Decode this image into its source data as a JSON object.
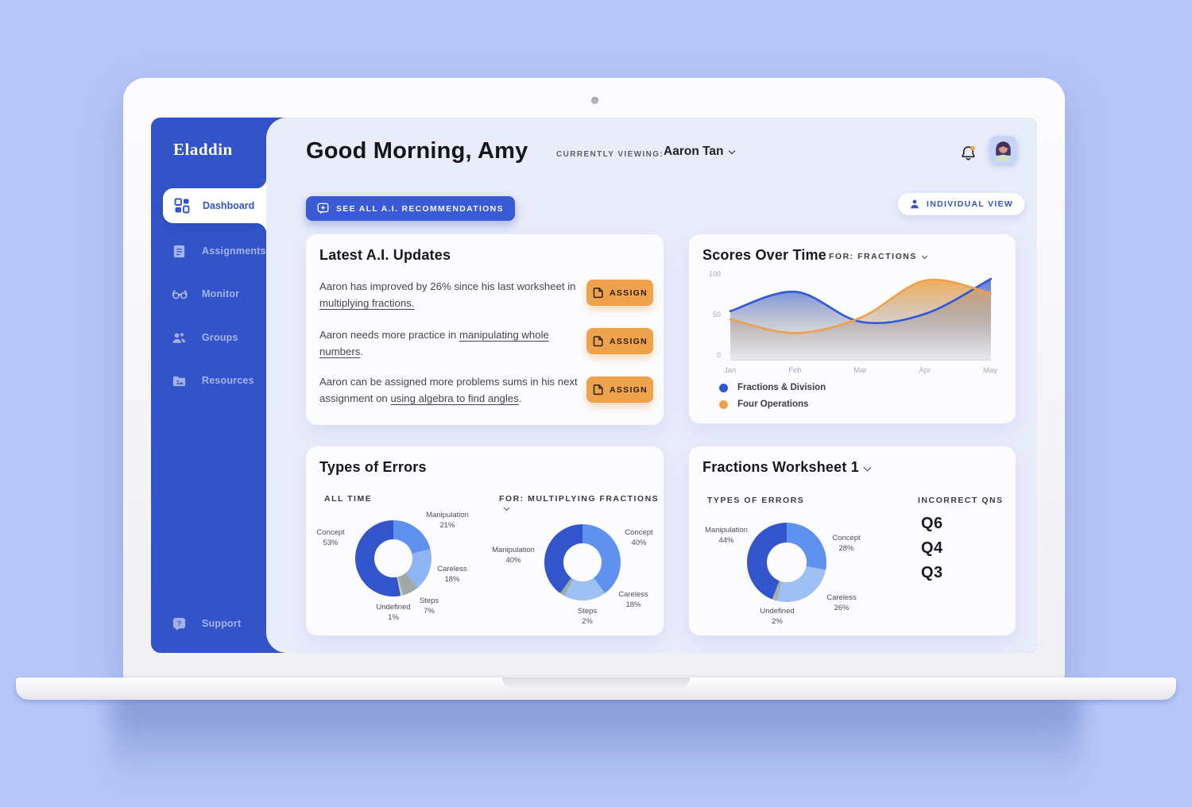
{
  "app": {
    "accent_blue": "#3354c9",
    "button_blue": "#3a5ad6",
    "accent_orange": "#eea24b",
    "content_bg": "#e9ecfb"
  },
  "sidebar": {
    "logo": "Eladdin",
    "items": [
      {
        "label": "Dashboard",
        "active": true
      },
      {
        "label": "Assignments",
        "active": false
      },
      {
        "label": "Monitor",
        "active": false
      },
      {
        "label": "Groups",
        "active": false
      },
      {
        "label": "Resources",
        "active": false
      }
    ],
    "support": {
      "label": "Support"
    }
  },
  "header": {
    "greeting": "Good Morning, Amy",
    "currently_viewing_label": "CURRENTLY VIEWING:",
    "currently_viewing_value": "Aaron Tan"
  },
  "toolbar": {
    "see_all_label": "SEE ALL A.I. RECOMMENDATIONS",
    "individual_view_label": "INDIVIDUAL VIEW"
  },
  "updates_card": {
    "title": "Latest A.I. Updates",
    "assign_label": "ASSIGN",
    "items": [
      {
        "pre": "Aaron has improved by 26% since his last worksheet in ",
        "link": "multiplying fractions.",
        "post": ""
      },
      {
        "pre": "Aaron needs more practice in ",
        "link": "manipulating whole numbers",
        "post": "."
      },
      {
        "pre": "Aaron can be assigned more problems sums in his next assignment on ",
        "link": "using algebra to find angles",
        "post": "."
      }
    ]
  },
  "scores_card": {
    "title": "Scores Over Time",
    "filter_label": "FOR: FRACTIONS"
  },
  "errors_card": {
    "title": "Types of Errors",
    "left_label": "ALL TIME",
    "right_label": "FOR: MULTIPLYING FRACTIONS"
  },
  "worksheet_card": {
    "title": "Fractions Worksheet 1",
    "errors_label": "TYPES OF ERRORS",
    "incorrect_label": "INCORRECT QNS",
    "incorrect_qns": [
      "Q6",
      "Q4",
      "Q3"
    ]
  },
  "chart_data": [
    {
      "id": "scores_over_time",
      "type": "area",
      "title": "Scores Over Time",
      "subtitle": "FOR: FRACTIONS",
      "x": [
        "Jan",
        "Feb",
        "Mar",
        "Apr",
        "May"
      ],
      "ylim": [
        0,
        100
      ],
      "yticks": [
        100,
        50,
        0
      ],
      "grid": false,
      "legend_position": "bottom-left",
      "series": [
        {
          "name": "Fractions & Division",
          "color": "#2f57d9",
          "values": [
            60,
            84,
            47,
            57,
            100
          ]
        },
        {
          "name": "Four Operations",
          "color": "#eda24a",
          "values": [
            50,
            33,
            52,
            98,
            82
          ]
        }
      ]
    },
    {
      "id": "errors_all_time",
      "type": "pie",
      "title": "Types of Errors — ALL TIME",
      "segments": [
        {
          "label": "Manipulation",
          "pct": 21,
          "color": "#5f92ee"
        },
        {
          "label": "Careless",
          "pct": 18,
          "color": "#8fb6f2"
        },
        {
          "label": "Steps",
          "pct": 7,
          "color": "#9fa9a6"
        },
        {
          "label": "Undefined",
          "pct": 1,
          "color": "#c8cfc9"
        },
        {
          "label": "Concept",
          "pct": 53,
          "color": "#3355cb"
        }
      ]
    },
    {
      "id": "errors_multiplying_fractions",
      "type": "pie",
      "title": "Types of Errors — FOR: MULTIPLYING FRACTIONS",
      "segments": [
        {
          "label": "Concept",
          "pct": 40,
          "color": "#5f92ee"
        },
        {
          "label": "Careless",
          "pct": 18,
          "color": "#9fc0f4"
        },
        {
          "label": "Steps",
          "pct": 2,
          "color": "#9fa9a6"
        },
        {
          "label": "Manipulation",
          "pct": 40,
          "color": "#3355cb"
        }
      ]
    },
    {
      "id": "worksheet_errors",
      "type": "pie",
      "title": "Fractions Worksheet 1 — TYPES OF ERRORS",
      "segments": [
        {
          "label": "Concept",
          "pct": 28,
          "color": "#5f92ee"
        },
        {
          "label": "Careless",
          "pct": 26,
          "color": "#9fc0f4"
        },
        {
          "label": "Undefined",
          "pct": 2,
          "color": "#a8b0ad"
        },
        {
          "label": "Manipulation",
          "pct": 44,
          "color": "#3355cb"
        }
      ]
    }
  ]
}
